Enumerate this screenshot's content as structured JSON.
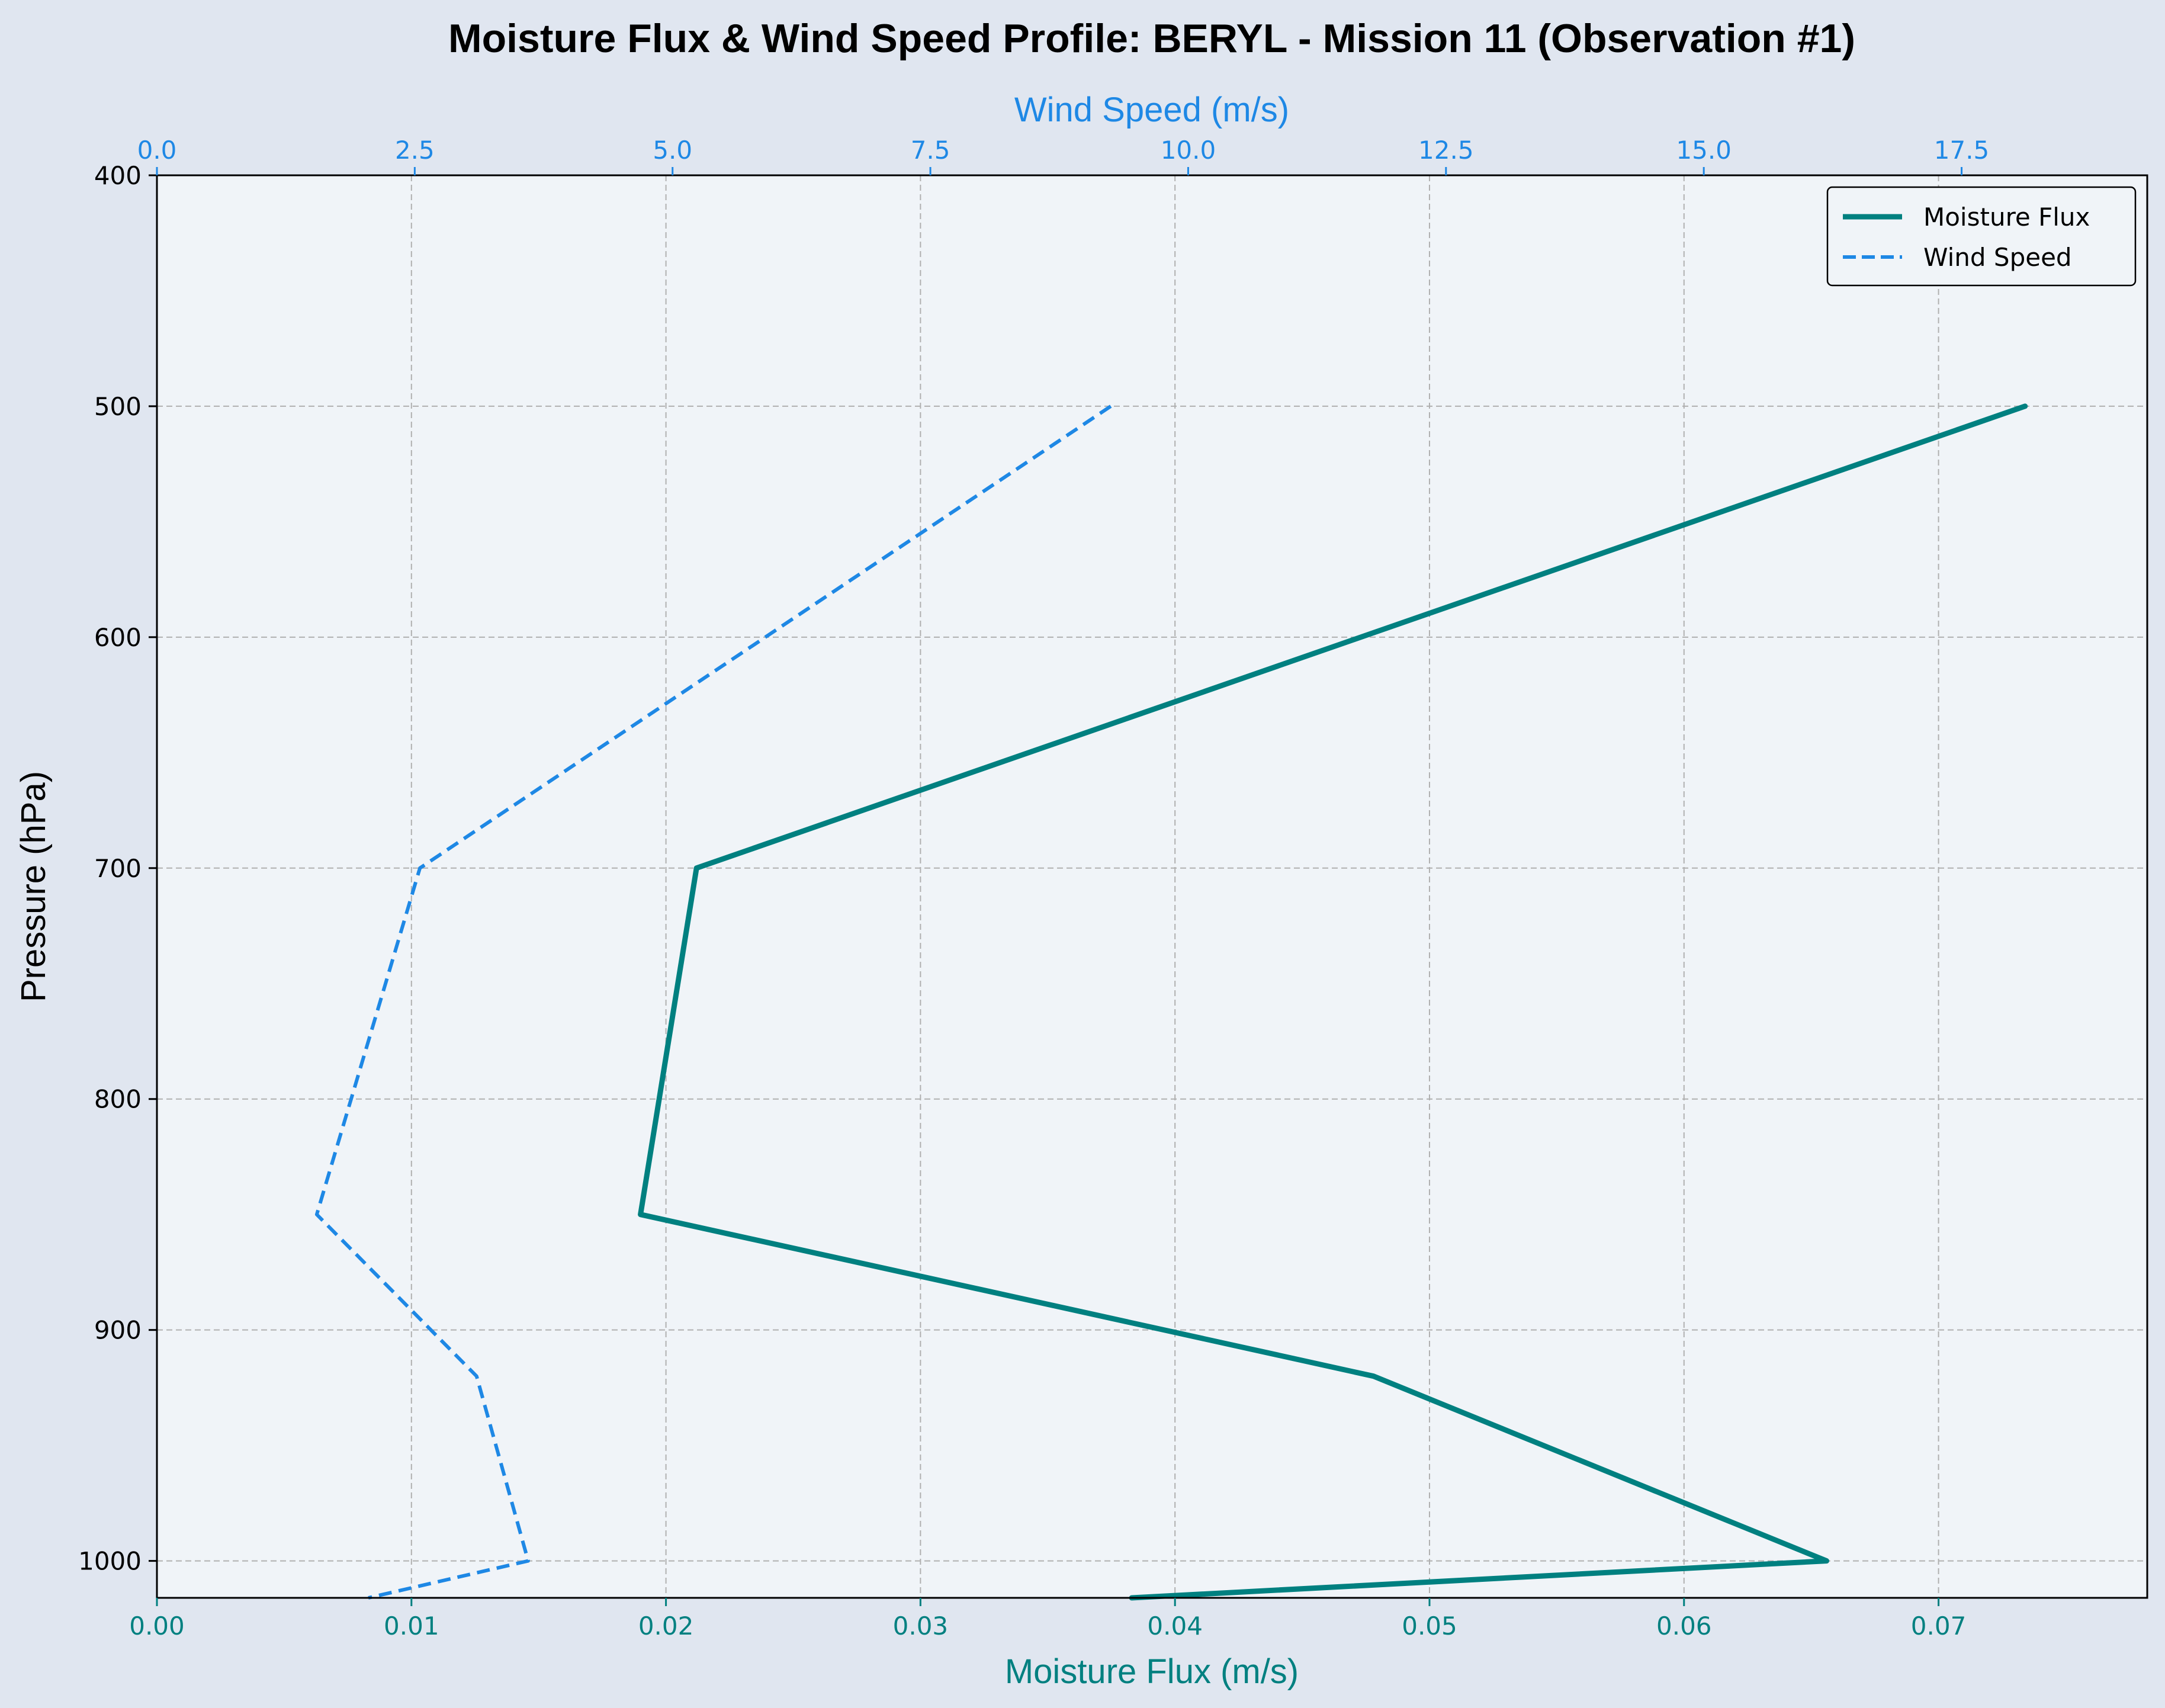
{
  "chart_data": {
    "type": "line",
    "title": "Moisture Flux & Wind Speed Profile: BERYL - Mission 11 (Observation #1)",
    "ylabel": "Pressure (hPa)",
    "xlabel_bottom": "Moisture Flux (m/s)",
    "xlabel_top": "Wind Speed (m/s)",
    "y_inverted": true,
    "ylim": [
      1016,
      400
    ],
    "yticks": [
      400,
      500,
      600,
      700,
      800,
      900,
      1000
    ],
    "xlim_bottom": [
      0,
      0.0782
    ],
    "xticks_bottom": [
      "0.00",
      "0.01",
      "0.02",
      "0.03",
      "0.04",
      "0.05",
      "0.06",
      "0.07"
    ],
    "xlim_top": [
      0,
      19.3
    ],
    "xticks_top": [
      "0.0",
      "2.5",
      "5.0",
      "7.5",
      "10.0",
      "12.5",
      "15.0",
      "17.5"
    ],
    "grid": true,
    "legend_position": "top-right",
    "series": [
      {
        "name": "Moisture Flux",
        "axis": "bottom",
        "color": "#008080",
        "style": "solid",
        "pressure": [
          500,
          700,
          850,
          920,
          1000,
          1016
        ],
        "values": [
          0.0734,
          0.0212,
          0.019,
          0.0478,
          0.0656,
          0.0383
        ]
      },
      {
        "name": "Wind Speed",
        "axis": "top",
        "color": "#1e88e5",
        "style": "dashed",
        "pressure": [
          500,
          700,
          850,
          920,
          1000,
          1016
        ],
        "values": [
          9.25,
          2.55,
          1.55,
          3.1,
          3.6,
          2.05
        ]
      }
    ],
    "colors": {
      "figure_bg": "#e0e6f0",
      "plot_bg": "#f0f4f8",
      "grid": "#b0b0b0",
      "top_axis": "#1e88e5",
      "bottom_axis": "#008080"
    }
  }
}
